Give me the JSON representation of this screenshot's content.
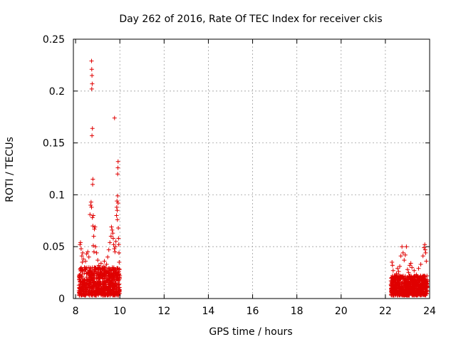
{
  "chart_data": {
    "type": "scatter",
    "title": "Day 262 of 2016, Rate Of TEC Index for receiver ckis",
    "xlabel": "GPS time / hours",
    "ylabel": "ROTI / TECUs",
    "xlim": [
      7.9,
      24
    ],
    "ylim": [
      0,
      0.25
    ],
    "xticks": [
      8,
      10,
      12,
      14,
      16,
      18,
      20,
      22,
      24
    ],
    "xtick_labels": [
      "8",
      "10",
      "12",
      "14",
      "16",
      "18",
      "20",
      "22",
      "24"
    ],
    "yticks": [
      0,
      0.05,
      0.1,
      0.15,
      0.2,
      0.25
    ],
    "ytick_labels": [
      "0",
      "0.05",
      "0.1",
      "0.15",
      "0.2",
      "0.25"
    ],
    "grid": true,
    "marker": "+",
    "series": [
      {
        "name": "ROTI",
        "color": "#e00000",
        "points": [
          [
            8.2,
            0.052
          ],
          [
            8.22,
            0.054
          ],
          [
            8.25,
            0.048
          ],
          [
            8.28,
            0.041
          ],
          [
            8.3,
            0.035
          ],
          [
            8.32,
            0.044
          ],
          [
            8.35,
            0.038
          ],
          [
            8.4,
            0.03
          ],
          [
            8.45,
            0.036
          ],
          [
            8.5,
            0.043
          ],
          [
            8.55,
            0.045
          ],
          [
            8.6,
            0.04
          ],
          [
            8.65,
            0.081
          ],
          [
            8.68,
            0.09
          ],
          [
            8.7,
            0.093
          ],
          [
            8.72,
            0.088
          ],
          [
            8.72,
            0.229
          ],
          [
            8.73,
            0.221
          ],
          [
            8.74,
            0.215
          ],
          [
            8.75,
            0.207
          ],
          [
            8.73,
            0.202
          ],
          [
            8.74,
            0.157
          ],
          [
            8.76,
            0.164
          ],
          [
            8.77,
            0.11
          ],
          [
            8.78,
            0.115
          ],
          [
            8.76,
            0.078
          ],
          [
            8.78,
            0.07
          ],
          [
            8.8,
            0.08
          ],
          [
            8.82,
            0.06
          ],
          [
            8.85,
            0.067
          ],
          [
            8.88,
            0.069
          ],
          [
            8.8,
            0.051
          ],
          [
            8.83,
            0.045
          ],
          [
            8.9,
            0.05
          ],
          [
            8.95,
            0.044
          ],
          [
            9.0,
            0.037
          ],
          [
            9.05,
            0.032
          ],
          [
            9.1,
            0.028
          ],
          [
            9.15,
            0.034
          ],
          [
            9.2,
            0.029
          ],
          [
            9.25,
            0.031
          ],
          [
            9.3,
            0.036
          ],
          [
            9.35,
            0.03
          ],
          [
            9.4,
            0.033
          ],
          [
            9.45,
            0.04
          ],
          [
            9.5,
            0.047
          ],
          [
            9.55,
            0.054
          ],
          [
            9.6,
            0.06
          ],
          [
            9.62,
            0.069
          ],
          [
            9.65,
            0.066
          ],
          [
            9.68,
            0.063
          ],
          [
            9.7,
            0.058
          ],
          [
            9.72,
            0.052
          ],
          [
            9.75,
            0.048
          ],
          [
            9.76,
            0.174
          ],
          [
            9.78,
            0.045
          ],
          [
            9.8,
            0.05
          ],
          [
            9.82,
            0.055
          ],
          [
            9.85,
            0.08
          ],
          [
            9.86,
            0.088
          ],
          [
            9.87,
            0.094
          ],
          [
            9.88,
            0.085
          ],
          [
            9.89,
            0.076
          ],
          [
            9.9,
            0.099
          ],
          [
            9.9,
            0.12
          ],
          [
            9.91,
            0.126
          ],
          [
            9.92,
            0.132
          ],
          [
            9.92,
            0.092
          ],
          [
            9.93,
            0.068
          ],
          [
            9.94,
            0.058
          ],
          [
            9.95,
            0.052
          ],
          [
            9.96,
            0.044
          ],
          [
            9.97,
            0.035
          ],
          [
            9.98,
            0.028
          ],
          [
            22.3,
            0.035
          ],
          [
            22.32,
            0.032
          ],
          [
            22.35,
            0.027
          ],
          [
            22.4,
            0.022
          ],
          [
            22.45,
            0.018
          ],
          [
            22.5,
            0.024
          ],
          [
            22.55,
            0.029
          ],
          [
            22.6,
            0.026
          ],
          [
            22.65,
            0.031
          ],
          [
            22.7,
            0.041
          ],
          [
            22.75,
            0.05
          ],
          [
            22.8,
            0.044
          ],
          [
            22.85,
            0.037
          ],
          [
            22.9,
            0.042
          ],
          [
            22.95,
            0.05
          ],
          [
            23.0,
            0.028
          ],
          [
            23.05,
            0.025
          ],
          [
            23.1,
            0.032
          ],
          [
            23.15,
            0.034
          ],
          [
            23.2,
            0.03
          ],
          [
            23.3,
            0.027
          ],
          [
            23.4,
            0.023
          ],
          [
            23.5,
            0.029
          ],
          [
            23.6,
            0.033
          ],
          [
            23.7,
            0.041
          ],
          [
            23.75,
            0.049
          ],
          [
            23.78,
            0.052
          ],
          [
            23.8,
            0.047
          ],
          [
            23.82,
            0.044
          ],
          [
            23.85,
            0.036
          ]
        ],
        "dense_bands": [
          {
            "x_range": [
              8.15,
              10.0
            ],
            "y_range": [
              0.003,
              0.03
            ]
          },
          {
            "x_range": [
              22.25,
              23.9
            ],
            "y_range": [
              0.003,
              0.022
            ]
          }
        ]
      }
    ]
  }
}
